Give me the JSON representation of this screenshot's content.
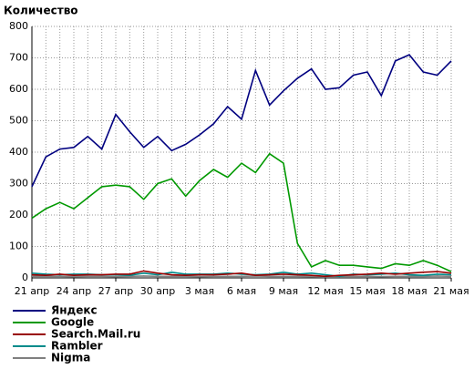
{
  "chart_data": {
    "type": "line",
    "title": "Количество",
    "categories": [
      "21 апр",
      null,
      null,
      "24 апр",
      null,
      null,
      "27 апр",
      null,
      null,
      "30 апр",
      null,
      null,
      "3 мая",
      null,
      null,
      "6 мая",
      null,
      null,
      "9 мая",
      null,
      null,
      "12 мая",
      null,
      null,
      "15 мая",
      null,
      null,
      "18 мая",
      null,
      null,
      "21 мая"
    ],
    "ylim": [
      0,
      800
    ],
    "yticks": [
      0,
      100,
      200,
      300,
      400,
      500,
      600,
      700,
      800
    ],
    "grid": true,
    "series": [
      {
        "name": "Яндекс",
        "color": "#000080",
        "values": [
          290,
          385,
          410,
          415,
          450,
          410,
          520,
          465,
          415,
          450,
          405,
          425,
          455,
          490,
          545,
          505,
          660,
          550,
          595,
          635,
          665,
          600,
          605,
          645,
          655,
          580,
          690,
          710,
          655,
          645,
          690
        ]
      },
      {
        "name": "Google",
        "color": "#009900",
        "values": [
          190,
          220,
          240,
          220,
          255,
          290,
          295,
          290,
          250,
          300,
          315,
          260,
          310,
          345,
          320,
          365,
          335,
          395,
          365,
          110,
          35,
          55,
          40,
          40,
          35,
          30,
          45,
          40,
          55,
          40,
          20
        ]
      },
      {
        "name": "Search.Mail.ru",
        "color": "#990000",
        "values": [
          10,
          8,
          12,
          8,
          10,
          10,
          12,
          12,
          22,
          15,
          10,
          8,
          10,
          10,
          12,
          15,
          8,
          10,
          12,
          10,
          8,
          5,
          8,
          10,
          12,
          15,
          12,
          15,
          18,
          20,
          15
        ]
      },
      {
        "name": "Rambler",
        "color": "#008b8b",
        "values": [
          15,
          12,
          10,
          12,
          12,
          10,
          10,
          8,
          15,
          10,
          18,
          12,
          12,
          12,
          15,
          12,
          10,
          12,
          18,
          12,
          15,
          10,
          5,
          12,
          10,
          12,
          15,
          10,
          8,
          12,
          10
        ]
      },
      {
        "name": "Nigma",
        "color": "#808080",
        "values": [
          5,
          5,
          5,
          4,
          5,
          5,
          4,
          5,
          6,
          5,
          5,
          5,
          4,
          5,
          5,
          5,
          6,
          5,
          5,
          5,
          4,
          5,
          5,
          5,
          5,
          4,
          5,
          5,
          5,
          6,
          5
        ]
      }
    ]
  }
}
